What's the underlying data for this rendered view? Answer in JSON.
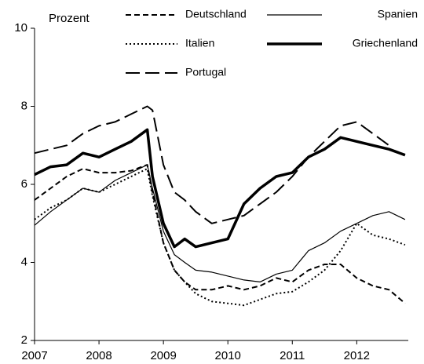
{
  "chart_data": {
    "type": "line",
    "ylabel": "Prozent",
    "x": [
      2007,
      2007.25,
      2007.5,
      2007.75,
      2008,
      2008.25,
      2008.5,
      2008.75,
      2008.83,
      2009,
      2009.17,
      2009.33,
      2009.5,
      2009.75,
      2010,
      2010.25,
      2010.5,
      2010.75,
      2011,
      2011.25,
      2011.5,
      2011.75,
      2012,
      2012.25,
      2012.5,
      2012.75
    ],
    "series": [
      {
        "name": "Deutschland",
        "color": "#000000",
        "dash": "dashed",
        "width": 2,
        "values": [
          5.6,
          5.9,
          6.2,
          6.4,
          6.3,
          6.3,
          6.35,
          6.5,
          5.8,
          4.5,
          3.8,
          3.5,
          3.3,
          3.3,
          3.4,
          3.3,
          3.4,
          3.6,
          3.5,
          3.8,
          3.95,
          3.95,
          3.6,
          3.4,
          3.3,
          2.95
        ]
      },
      {
        "name": "Spanien",
        "color": "#000000",
        "dash": "solid",
        "width": 1.2,
        "values": [
          4.95,
          5.3,
          5.6,
          5.9,
          5.8,
          6.1,
          6.3,
          6.5,
          5.9,
          4.8,
          4.2,
          4.0,
          3.8,
          3.75,
          3.65,
          3.55,
          3.5,
          3.7,
          3.8,
          4.3,
          4.5,
          4.8,
          5.0,
          5.2,
          5.3,
          5.1
        ]
      },
      {
        "name": "Italien",
        "color": "#000000",
        "dash": "dotted",
        "width": 2,
        "values": [
          5.1,
          5.4,
          5.6,
          5.9,
          5.8,
          6.0,
          6.2,
          6.4,
          5.7,
          4.5,
          3.8,
          3.5,
          3.2,
          3.0,
          2.95,
          2.9,
          3.05,
          3.2,
          3.25,
          3.5,
          3.8,
          4.3,
          5.0,
          4.7,
          4.6,
          4.45
        ]
      },
      {
        "name": "Griechenland",
        "color": "#000000",
        "dash": "solid",
        "width": 3.5,
        "values": [
          6.25,
          6.45,
          6.5,
          6.8,
          6.7,
          6.9,
          7.1,
          7.4,
          6.2,
          5.0,
          4.4,
          4.6,
          4.4,
          4.5,
          4.6,
          5.5,
          5.9,
          6.2,
          6.3,
          6.7,
          6.9,
          7.2,
          7.1,
          7.0,
          6.9,
          6.75
        ]
      },
      {
        "name": "Portugal",
        "color": "#000000",
        "dash": "longdash",
        "width": 2,
        "values": [
          6.8,
          6.9,
          7.0,
          7.3,
          7.5,
          7.6,
          7.8,
          8.0,
          7.9,
          6.5,
          5.8,
          5.6,
          5.3,
          5.0,
          5.1,
          5.2,
          5.5,
          5.8,
          6.2,
          6.7,
          7.1,
          7.5,
          7.6,
          7.3,
          7.0,
          null
        ]
      }
    ],
    "xlim": [
      2007,
      2012.8
    ],
    "xticks": [
      2007,
      2008,
      2009,
      2010,
      2011,
      2012
    ],
    "ylim": [
      2,
      10
    ],
    "yticks": [
      2,
      4,
      6,
      8,
      10
    ]
  }
}
